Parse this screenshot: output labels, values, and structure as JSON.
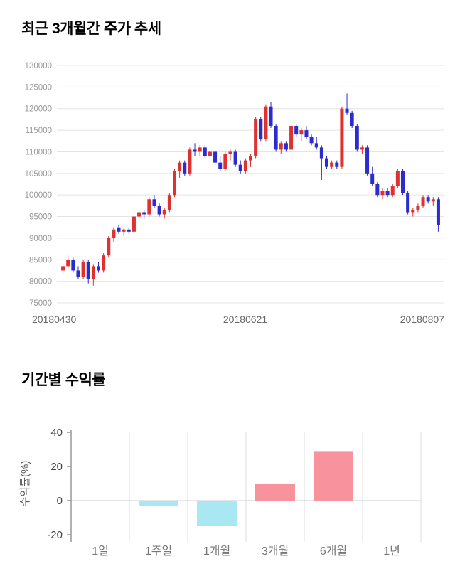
{
  "chart_data": [
    {
      "type": "candlestick",
      "title": "최근 3개월간 주가 추세",
      "ylim": [
        75000,
        130000
      ],
      "y_ticks": [
        75000,
        80000,
        85000,
        90000,
        95000,
        100000,
        105000,
        110000,
        115000,
        120000,
        125000,
        130000
      ],
      "x_labels": [
        "20180430",
        "20180621",
        "20180807"
      ],
      "grid": "horizontal",
      "legend": "none",
      "colors": {
        "up": "#e03131",
        "down": "#2b2bd0",
        "grid": "#e4e4e4",
        "tick_text": "#999999",
        "xlabel_text": "#666666"
      },
      "candles_format": [
        "open",
        "high",
        "low",
        "close"
      ],
      "candles": [
        [
          82500,
          84000,
          81500,
          83500
        ],
        [
          83500,
          86000,
          83000,
          85000
        ],
        [
          85000,
          85500,
          82000,
          82500
        ],
        [
          82500,
          83500,
          80500,
          81000
        ],
        [
          81000,
          85000,
          80500,
          84500
        ],
        [
          84500,
          85000,
          79500,
          80500
        ],
        [
          80500,
          84000,
          79000,
          83500
        ],
        [
          83500,
          84500,
          82000,
          82500
        ],
        [
          82500,
          86500,
          82000,
          86000
        ],
        [
          86000,
          90500,
          85500,
          90000
        ],
        [
          90000,
          92500,
          89000,
          92000
        ],
        [
          92500,
          93000,
          91000,
          91500
        ],
        [
          91500,
          92500,
          90500,
          92000
        ],
        [
          92000,
          92500,
          91000,
          91500
        ],
        [
          91500,
          95500,
          91000,
          95000
        ],
        [
          95000,
          96500,
          94000,
          96000
        ],
        [
          96000,
          96500,
          94500,
          95500
        ],
        [
          95500,
          99500,
          95000,
          99000
        ],
        [
          99000,
          100000,
          97000,
          97500
        ],
        [
          97500,
          98000,
          95000,
          95500
        ],
        [
          95500,
          97000,
          94500,
          96500
        ],
        [
          96500,
          100500,
          96000,
          100000
        ],
        [
          100000,
          106000,
          99500,
          105500
        ],
        [
          105500,
          108000,
          104000,
          107500
        ],
        [
          107500,
          108000,
          104500,
          105000
        ],
        [
          105000,
          111000,
          104500,
          110500
        ],
        [
          110500,
          112000,
          109000,
          110000
        ],
        [
          110000,
          111500,
          109000,
          111000
        ],
        [
          111000,
          111500,
          108500,
          109000
        ],
        [
          109000,
          110500,
          107500,
          110000
        ],
        [
          110000,
          110500,
          107000,
          107500
        ],
        [
          107500,
          109000,
          105500,
          106000
        ],
        [
          106000,
          110000,
          105500,
          109500
        ],
        [
          109500,
          110500,
          108000,
          110000
        ],
        [
          110000,
          110500,
          106500,
          107000
        ],
        [
          107000,
          108000,
          105000,
          105500
        ],
        [
          105500,
          108500,
          105000,
          108000
        ],
        [
          108000,
          109500,
          106500,
          109000
        ],
        [
          109000,
          118000,
          108500,
          117500
        ],
        [
          117500,
          118000,
          112500,
          113000
        ],
        [
          113000,
          121000,
          112500,
          120500
        ],
        [
          120500,
          121500,
          115500,
          116000
        ],
        [
          116000,
          116500,
          110000,
          110500
        ],
        [
          110500,
          112500,
          109500,
          112000
        ],
        [
          112000,
          112500,
          110000,
          110500
        ],
        [
          110500,
          116500,
          110000,
          116000
        ],
        [
          116000,
          116500,
          113500,
          114000
        ],
        [
          114000,
          115500,
          112500,
          115000
        ],
        [
          115000,
          116000,
          113000,
          113500
        ],
        [
          113500,
          114000,
          111500,
          112000
        ],
        [
          112000,
          113500,
          110500,
          111000
        ],
        [
          111000,
          111500,
          103500,
          108500
        ],
        [
          108500,
          109000,
          106000,
          106500
        ],
        [
          106500,
          108000,
          106000,
          107500
        ],
        [
          107500,
          108000,
          106000,
          106500
        ],
        [
          106500,
          120500,
          106000,
          120000
        ],
        [
          120000,
          123500,
          118500,
          119000
        ],
        [
          119000,
          119500,
          115500,
          116000
        ],
        [
          116000,
          116500,
          110000,
          110500
        ],
        [
          110500,
          111500,
          109500,
          111000
        ],
        [
          111000,
          111500,
          104500,
          105000
        ],
        [
          105000,
          106500,
          102000,
          102500
        ],
        [
          102500,
          103000,
          99500,
          100000
        ],
        [
          100000,
          101500,
          99000,
          101000
        ],
        [
          101000,
          101500,
          99500,
          100000
        ],
        [
          100000,
          102500,
          99500,
          102000
        ],
        [
          102000,
          106000,
          101500,
          105500
        ],
        [
          105500,
          106000,
          100000,
          100500
        ],
        [
          100500,
          101000,
          95500,
          96000
        ],
        [
          96000,
          97000,
          95000,
          96500
        ],
        [
          96500,
          98000,
          96000,
          97500
        ],
        [
          97500,
          100000,
          97000,
          99500
        ],
        [
          99500,
          100000,
          98000,
          98500
        ],
        [
          98500,
          99500,
          97500,
          99000
        ],
        [
          99000,
          99500,
          91500,
          93000
        ]
      ]
    },
    {
      "type": "bar",
      "title": "기간별 수익률",
      "ylabel": "수익률(%)",
      "categories": [
        "1일",
        "1주일",
        "1개월",
        "3개월",
        "6개월",
        "1년"
      ],
      "values": [
        0,
        -3,
        -15,
        10,
        29,
        0
      ],
      "ylim": [
        -20,
        40
      ],
      "y_ticks": [
        40,
        20,
        0,
        -20
      ],
      "grid": "vertical-separators-and-zero-line",
      "legend": "none",
      "colors": {
        "positive": "#f8929c",
        "negative": "#a9e7f2",
        "grid": "#dddddd",
        "axis": "#999999",
        "tick_text": "#444444",
        "category_text": "#777777",
        "ylabel_text": "#555555"
      }
    }
  ]
}
